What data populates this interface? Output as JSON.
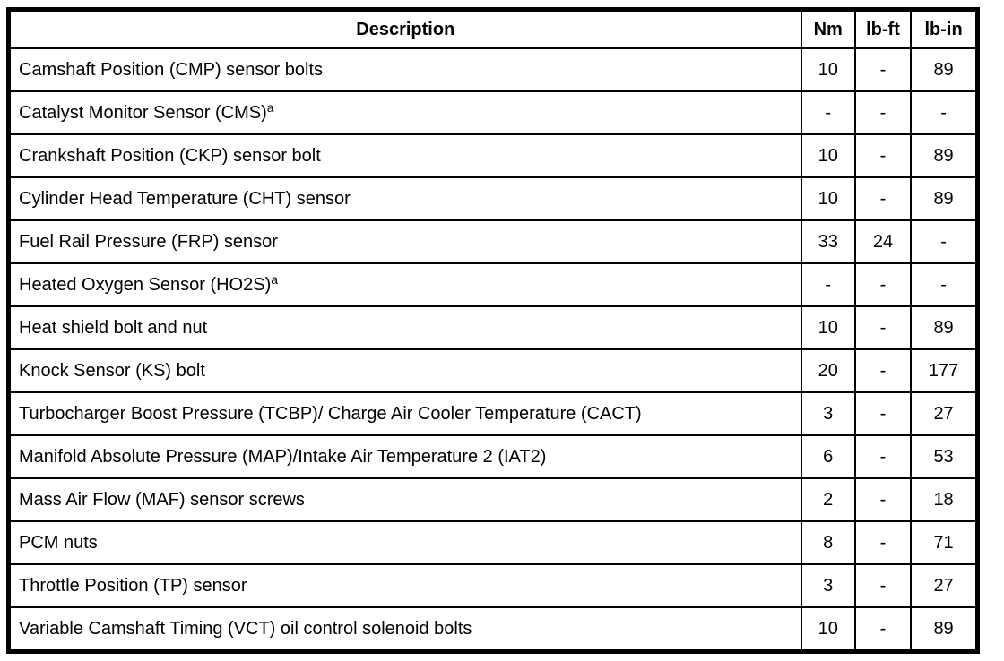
{
  "page": {
    "background_color": "#ffffff",
    "line_color": "#000000",
    "text_color": "#000000"
  },
  "table": {
    "columns": [
      "Description",
      "Nm",
      "lb-ft",
      "lb-in"
    ],
    "rows": [
      {
        "description": "Camshaft Position (CMP) sensor bolts",
        "sup": "",
        "nm": "10",
        "lb_ft": "-",
        "lb_in": "89"
      },
      {
        "description": "Catalyst Monitor Sensor (CMS)",
        "sup": "a",
        "nm": "-",
        "lb_ft": "-",
        "lb_in": "-"
      },
      {
        "description": "Crankshaft Position (CKP) sensor bolt",
        "sup": "",
        "nm": "10",
        "lb_ft": "-",
        "lb_in": "89"
      },
      {
        "description": "Cylinder Head Temperature (CHT) sensor",
        "sup": "",
        "nm": "10",
        "lb_ft": "-",
        "lb_in": "89"
      },
      {
        "description": "Fuel Rail Pressure (FRP) sensor",
        "sup": "",
        "nm": "33",
        "lb_ft": "24",
        "lb_in": "-"
      },
      {
        "description": "Heated Oxygen Sensor (HO2S)",
        "sup": "a",
        "nm": "-",
        "lb_ft": "-",
        "lb_in": "-"
      },
      {
        "description": "Heat shield bolt and nut",
        "sup": "",
        "nm": "10",
        "lb_ft": "-",
        "lb_in": "89"
      },
      {
        "description": "Knock Sensor (KS) bolt",
        "sup": "",
        "nm": "20",
        "lb_ft": "-",
        "lb_in": "177"
      },
      {
        "description": "Turbocharger Boost Pressure (TCBP)/ Charge Air Cooler Temperature (CACT)",
        "sup": "",
        "nm": "3",
        "lb_ft": "-",
        "lb_in": "27"
      },
      {
        "description": "Manifold Absolute Pressure (MAP)/Intake Air Temperature 2 (IAT2)",
        "sup": "",
        "nm": "6",
        "lb_ft": "-",
        "lb_in": "53"
      },
      {
        "description": "Mass Air Flow (MAF) sensor screws",
        "sup": "",
        "nm": "2",
        "lb_ft": "-",
        "lb_in": "18"
      },
      {
        "description": "PCM nuts",
        "sup": "",
        "nm": "8",
        "lb_ft": "-",
        "lb_in": "71"
      },
      {
        "description": "Throttle Position (TP) sensor",
        "sup": "",
        "nm": "3",
        "lb_ft": "-",
        "lb_in": "27"
      },
      {
        "description": "Variable Camshaft Timing (VCT) oil control solenoid bolts",
        "sup": "",
        "nm": "10",
        "lb_ft": "-",
        "lb_in": "89"
      }
    ]
  }
}
